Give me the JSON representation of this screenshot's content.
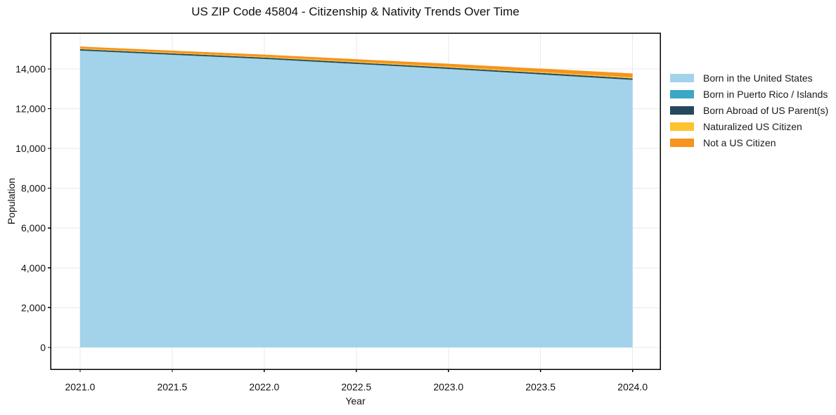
{
  "figure": {
    "title": "US ZIP Code 45804 - Citizenship & Nativity Trends Over Time"
  },
  "chart_data": {
    "type": "area",
    "stacked": true,
    "title": "US ZIP Code 45804 - Citizenship & Nativity Trends Over Time",
    "xlabel": "Year",
    "ylabel": "Population",
    "x": [
      2021,
      2022,
      2023,
      2024
    ],
    "series": [
      {
        "name": "Born in the United States",
        "color": "#a2d3ea",
        "values": [
          14910,
          14490,
          13990,
          13440
        ]
      },
      {
        "name": "Born in Puerto Rico / Islands",
        "color": "#3ba8c5",
        "values": [
          12,
          10,
          9,
          8
        ]
      },
      {
        "name": "Born Abroad of US Parent(s)",
        "color": "#25495c",
        "values": [
          70,
          68,
          70,
          73
        ]
      },
      {
        "name": "Naturalized US Citizen",
        "color": "#fcc32d",
        "values": [
          35,
          40,
          46,
          54
        ]
      },
      {
        "name": "Not a US Citizen",
        "color": "#f5941f",
        "values": [
          95,
          108,
          142,
          195
        ]
      }
    ],
    "xlim": [
      2020.84,
      2024.15
    ],
    "ylim": [
      -1100,
      15800
    ],
    "xticks": {
      "values": [
        2021.0,
        2021.5,
        2022.0,
        2022.5,
        2023.0,
        2023.5,
        2024.0
      ],
      "labels": [
        "2021.0",
        "2021.5",
        "2022.0",
        "2022.5",
        "2023.0",
        "2023.5",
        "2024.0"
      ]
    },
    "yticks": {
      "values": [
        0,
        2000,
        4000,
        6000,
        8000,
        10000,
        12000,
        14000
      ],
      "labels": [
        "0",
        "2,000",
        "4,000",
        "6,000",
        "8,000",
        "10,000",
        "12,000",
        "14,000"
      ]
    },
    "grid": true,
    "grid_color": "#e9e9e9",
    "frame_color": "#000000",
    "legend_position": "right"
  }
}
